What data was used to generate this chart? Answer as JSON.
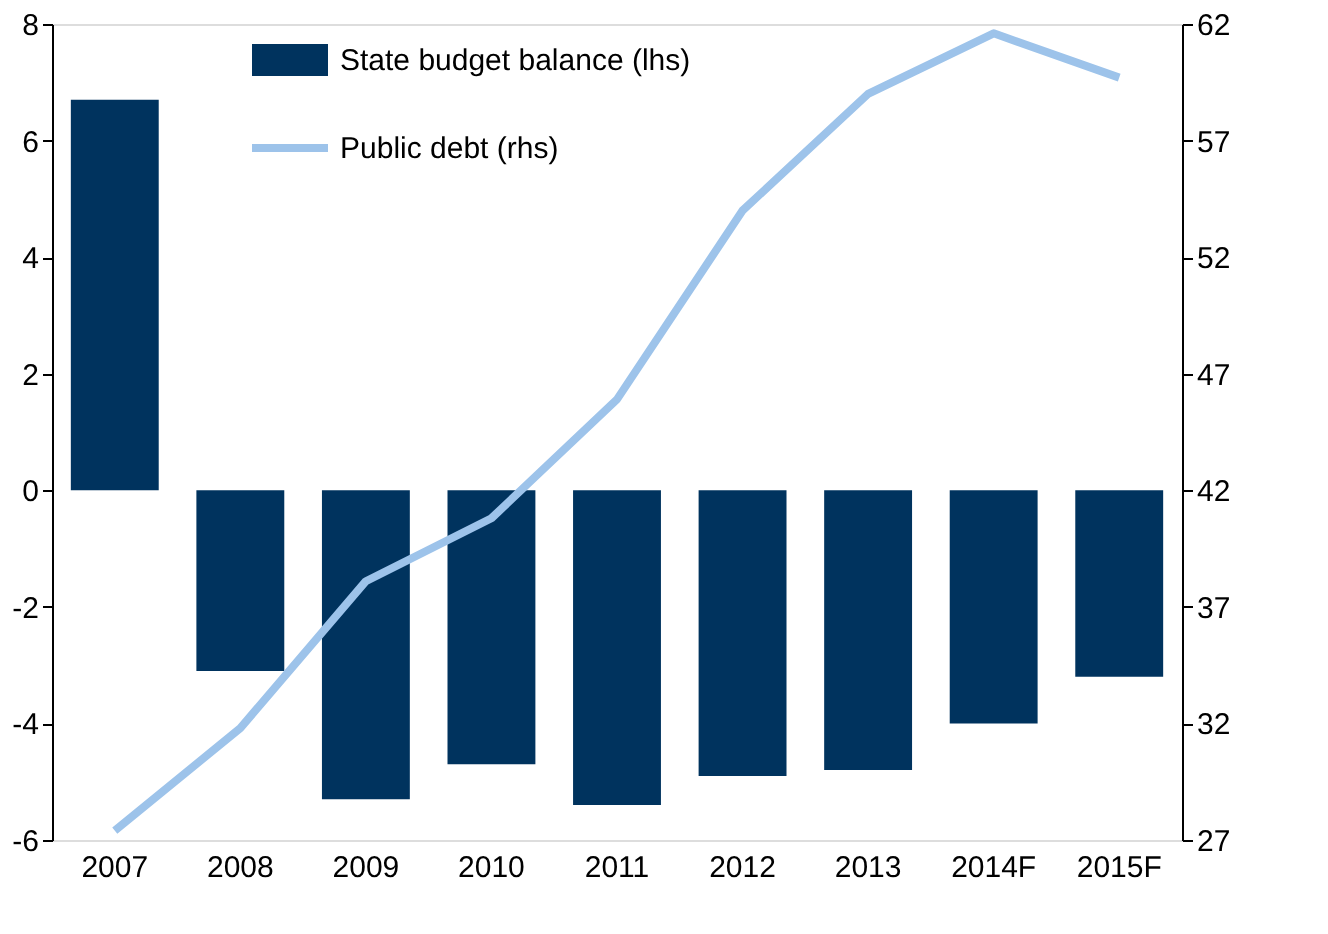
{
  "chart_data": {
    "type": "bar",
    "categories": [
      "2007",
      "2008",
      "2009",
      "2010",
      "2011",
      "2012",
      "2013",
      "2014F",
      "2015F"
    ],
    "series": [
      {
        "name": "State budget balance (lhs)",
        "color": "#00335e",
        "values": [
          6.7,
          -3.1,
          -5.3,
          -4.7,
          -5.4,
          -4.9,
          -4.8,
          -4.0,
          -3.2
        ]
      },
      {
        "name": "Public debt (rhs)",
        "type": "line",
        "axis": "y2",
        "color": "#9dc3ea",
        "values": [
          27.4,
          31.8,
          38.1,
          40.8,
          45.9,
          54.0,
          59.0,
          61.6,
          59.7
        ]
      }
    ],
    "ylim": [
      -6,
      8
    ],
    "yticks": [
      -6,
      -4,
      -2,
      0,
      2,
      4,
      6,
      8
    ],
    "y2lim": [
      27,
      62
    ],
    "y2ticks": [
      27,
      32,
      37,
      42,
      47,
      52,
      57,
      62
    ],
    "legend": "top left",
    "grid": false,
    "marker": "none",
    "line_style": "solid"
  }
}
